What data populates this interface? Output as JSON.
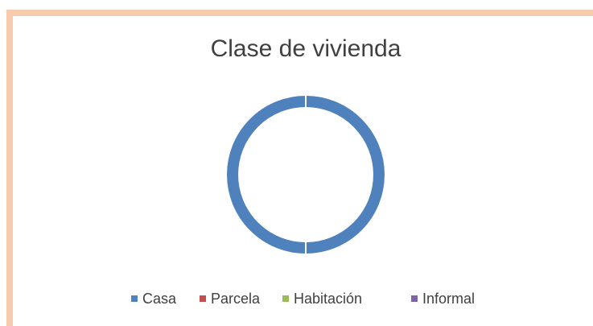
{
  "chart_data": {
    "type": "doughnut",
    "title": "Clase de vivienda",
    "categories": [
      "Casa",
      "Parcela",
      "Habitación",
      "Informal"
    ],
    "values": [
      100,
      0,
      0,
      0
    ],
    "colors": [
      "#4f81bd",
      "#c0504d",
      "#9bbb59",
      "#8064a2"
    ],
    "legend": "bottom"
  }
}
